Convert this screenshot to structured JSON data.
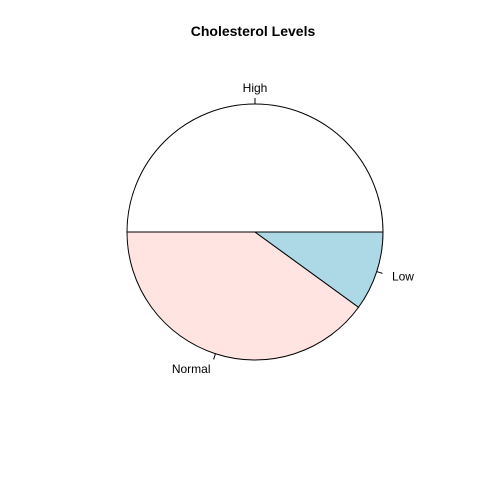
{
  "chart_data": {
    "type": "pie",
    "title": "Cholesterol Levels",
    "slices": [
      {
        "label": "High",
        "value": 50,
        "color": "#ffffff"
      },
      {
        "label": "Normal",
        "value": 40,
        "color": "#ffe4e1"
      },
      {
        "label": "Low",
        "value": 10,
        "color": "#add8e6"
      }
    ],
    "start_angle_deg": 0,
    "direction": "counterclockwise",
    "legend": "none"
  }
}
